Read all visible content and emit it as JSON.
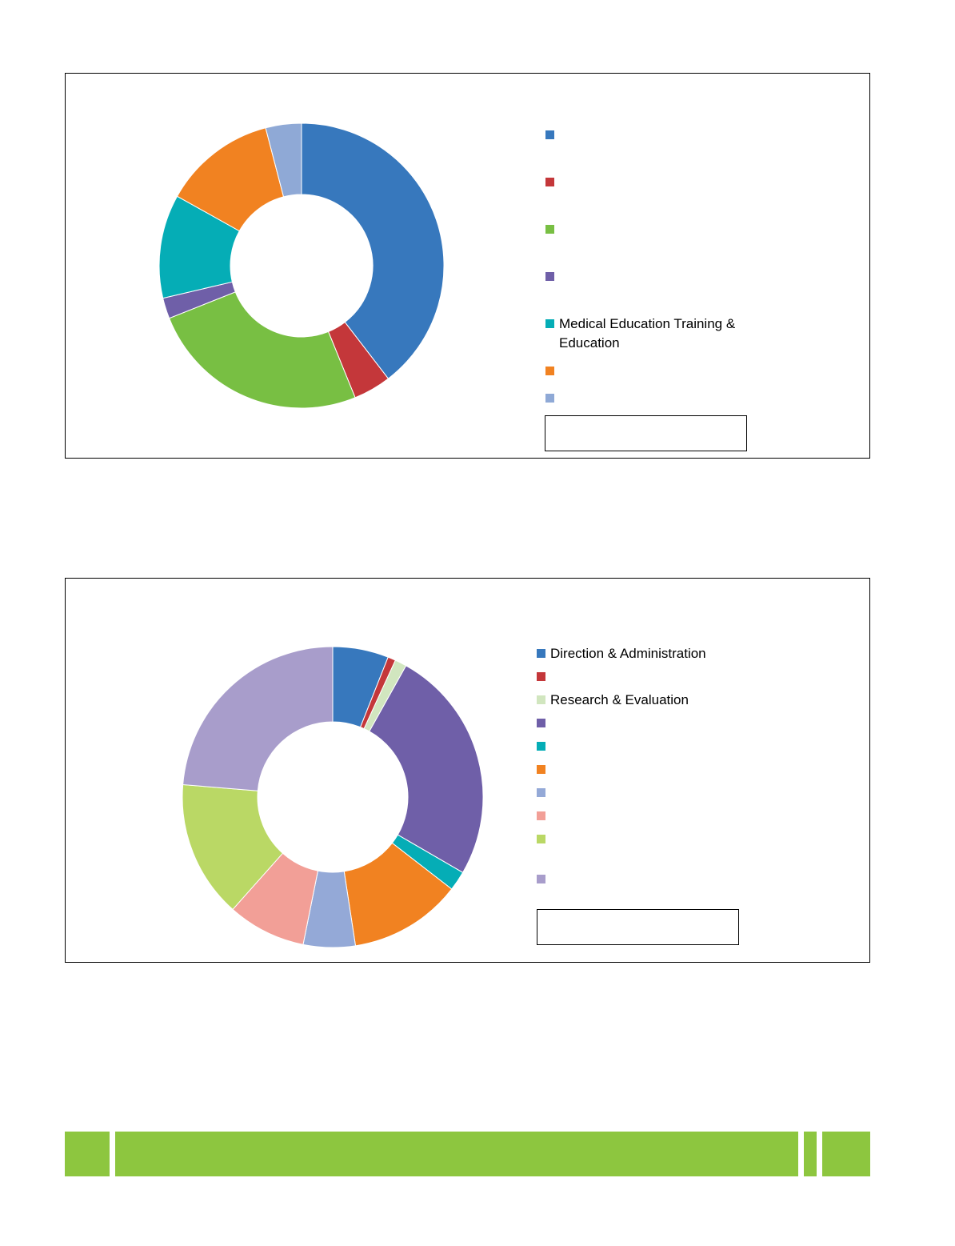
{
  "chart_data": [
    {
      "type": "pie",
      "variant": "donut",
      "slices": [
        {
          "label": "",
          "value": 37.0,
          "color": "#3778bd"
        },
        {
          "label": "",
          "value": 4.0,
          "color": "#c4373a"
        },
        {
          "label": "",
          "value": 23.5,
          "color": "#78bf43"
        },
        {
          "label": "",
          "value": 2.2,
          "color": "#6f5fa8"
        },
        {
          "label": "Medical Education Training & Education",
          "value": 11.0,
          "color": "#05adb6"
        },
        {
          "label": "",
          "value": 12.0,
          "color": "#f18221"
        },
        {
          "label": "",
          "value": 3.8,
          "color": "#8fa9d6"
        }
      ]
    },
    {
      "type": "pie",
      "variant": "donut",
      "slices": [
        {
          "label": "Direction & Administration",
          "value": 5.7,
          "color": "#3778bd"
        },
        {
          "label": "",
          "value": 0.8,
          "color": "#c4373a"
        },
        {
          "label": "Research & Evaluation",
          "value": 1.2,
          "color": "#d1e6bf"
        },
        {
          "label": "",
          "value": 24.0,
          "color": "#6f5fa8"
        },
        {
          "label": "",
          "value": 2.0,
          "color": "#05adb6"
        },
        {
          "label": "",
          "value": 11.5,
          "color": "#f18221"
        },
        {
          "label": "",
          "value": 5.3,
          "color": "#94a9d7"
        },
        {
          "label": "",
          "value": 8.0,
          "color": "#f29f97"
        },
        {
          "label": "",
          "value": 14.0,
          "color": "#bad865"
        },
        {
          "label": "",
          "value": 22.5,
          "color": "#a89dcb"
        }
      ]
    }
  ],
  "footer": {
    "color": "#8dc63f"
  }
}
